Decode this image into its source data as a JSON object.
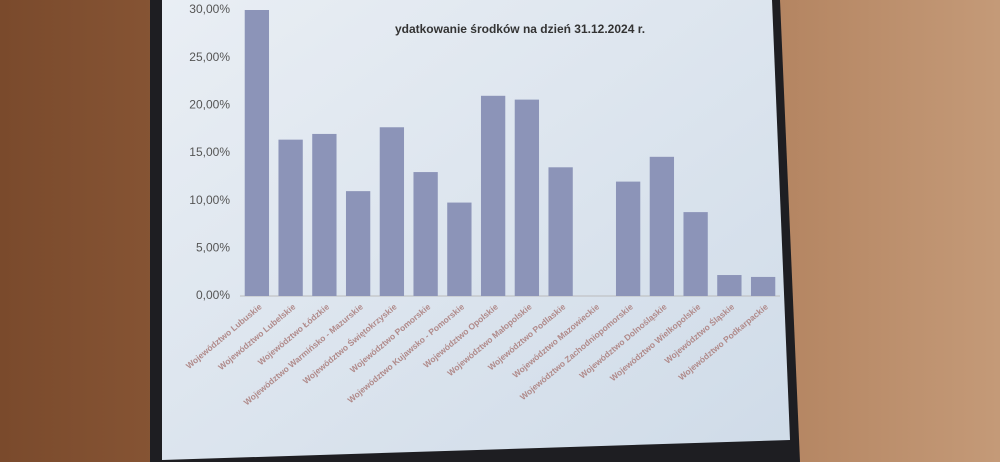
{
  "chart_data": {
    "type": "bar",
    "title": "ydatkowanie środków na dzień 31.12.2024 r.",
    "categories": [
      "Województwo Lubuskie",
      "Województwo Lubelskie",
      "Województwo Łódzkie",
      "Województwo Warmińsko - Mazurskie",
      "Województwo Świętokrzyskie",
      "Województwo Pomorskie",
      "Województwo Kujawsko - Pomorskie",
      "Województwo Opolskie",
      "Województwo Małopolskie",
      "Województwo Podlaskie",
      "Województwo Mazowieckie",
      "Województwo Zachodniopomorskie",
      "Województwo Dolnośląskie",
      "Województwo Wielkopolskie",
      "Województwo Śląskie",
      "Województwo Podkarpackie"
    ],
    "values": [
      30,
      16.4,
      17,
      11,
      17.7,
      13,
      9.8,
      21,
      20.6,
      13.5,
      0,
      12,
      14.6,
      8.8,
      2.2,
      2
    ],
    "color": "#8c94b8",
    "ylim": [
      0,
      30
    ],
    "yticks": [
      {
        "value": 0,
        "label": "0,00%"
      },
      {
        "value": 5,
        "label": "5,00%"
      },
      {
        "value": 10,
        "label": "10,00%"
      },
      {
        "value": 15,
        "label": "15,00%"
      },
      {
        "value": 20,
        "label": "20,00%"
      },
      {
        "value": 25,
        "label": "25,00%"
      },
      {
        "value": 30,
        "label": "30,00%"
      }
    ],
    "grid": false
  }
}
